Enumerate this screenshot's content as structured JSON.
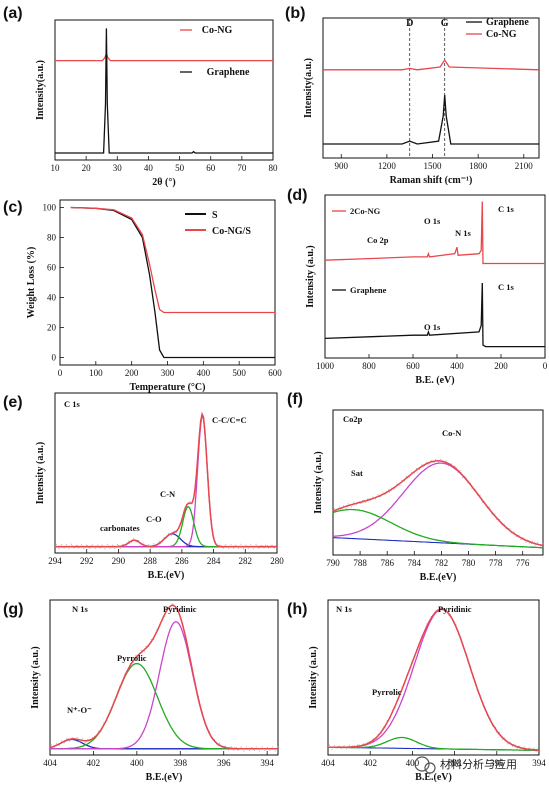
{
  "watermark": "材料分析与应用",
  "chart_data": [
    {
      "id": "a",
      "panel_label": "(a)",
      "type": "line",
      "xlabel": "2θ (°)",
      "ylabel": "Intensity(a.u.)",
      "xlim": [
        10,
        80
      ],
      "ylim": [
        0,
        1
      ],
      "xticks": [
        10,
        20,
        30,
        40,
        50,
        60,
        70,
        80
      ],
      "series": [
        {
          "name": "Co-NG",
          "color": "#e8474c",
          "x": [
            10,
            25.2,
            26,
            26.5,
            27,
            27.8,
            80
          ],
          "y": [
            0.71,
            0.71,
            0.73,
            0.76,
            0.73,
            0.71,
            0.71
          ]
        },
        {
          "name": "Graphene",
          "color": "#111111",
          "x": [
            10,
            25.6,
            26.2,
            26.5,
            26.8,
            27.4,
            54,
            54.5,
            55,
            80
          ],
          "y": [
            0.05,
            0.05,
            0.4,
            0.94,
            0.4,
            0.05,
            0.05,
            0.06,
            0.05,
            0.05
          ]
        }
      ]
    },
    {
      "id": "b",
      "panel_label": "(b)",
      "type": "line",
      "xlabel": "Raman shift (cm⁻¹)",
      "ylabel": "Intensity(a.u.)",
      "xlim": [
        780,
        2200
      ],
      "ylim": [
        0,
        1
      ],
      "xticks": [
        900,
        1200,
        1500,
        1800,
        2100
      ],
      "vlines": [
        1350,
        1580
      ],
      "vline_labels": [
        "D",
        "G"
      ],
      "series": [
        {
          "name": "Graphene",
          "color": "#111111",
          "x": [
            780,
            1300,
            1350,
            1400,
            1540,
            1570,
            1580,
            1590,
            1620,
            2200
          ],
          "y": [
            0.1,
            0.1,
            0.12,
            0.1,
            0.12,
            0.3,
            0.45,
            0.3,
            0.1,
            0.1
          ]
        },
        {
          "name": "Co-NG",
          "color": "#e8474c",
          "x": [
            780,
            1300,
            1350,
            1400,
            1550,
            1580,
            1610,
            2200
          ],
          "y": [
            0.63,
            0.63,
            0.64,
            0.63,
            0.65,
            0.7,
            0.65,
            0.63
          ]
        }
      ]
    },
    {
      "id": "c",
      "panel_label": "(c)",
      "type": "line",
      "xlabel": "Temperature (°C)",
      "ylabel": "Weight Loss (%)",
      "xlim": [
        0,
        600
      ],
      "ylim": [
        -5,
        105
      ],
      "xticks": [
        0,
        100,
        200,
        300,
        400,
        500,
        600
      ],
      "yticks": [
        0,
        20,
        40,
        60,
        80,
        100
      ],
      "series": [
        {
          "name": "S",
          "color": "#111111",
          "x": [
            30,
            100,
            150,
            200,
            230,
            250,
            265,
            278,
            290,
            600
          ],
          "y": [
            100,
            99.5,
            98,
            92,
            80,
            55,
            30,
            5,
            0,
            0
          ]
        },
        {
          "name": "Co-NG/S",
          "color": "#e8474c",
          "x": [
            30,
            100,
            150,
            200,
            230,
            250,
            265,
            278,
            290,
            600
          ],
          "y": [
            100,
            99.5,
            98.5,
            93,
            82,
            62,
            45,
            32,
            30,
            30
          ]
        }
      ]
    },
    {
      "id": "d",
      "panel_label": "(d)",
      "type": "line",
      "xlabel": "B.E. (eV)",
      "ylabel": "Intensity (a.u.)",
      "xlim": [
        1000,
        0
      ],
      "ylim": [
        0,
        1
      ],
      "xticks": [
        1000,
        800,
        600,
        400,
        200,
        0
      ],
      "series": [
        {
          "name": "2Co-NG",
          "color": "#e8474c",
          "x": [
            1000,
            800,
            600,
            535,
            530,
            525,
            410,
            400,
            395,
            300,
            290,
            285,
            282,
            270,
            0
          ],
          "y": [
            0.6,
            0.61,
            0.62,
            0.62,
            0.64,
            0.62,
            0.64,
            0.68,
            0.63,
            0.64,
            0.66,
            0.96,
            0.58,
            0.58,
            0.58
          ]
        },
        {
          "name": "Graphene",
          "color": "#111111",
          "x": [
            1000,
            800,
            600,
            535,
            530,
            525,
            300,
            290,
            285,
            282,
            270,
            0
          ],
          "y": [
            0.12,
            0.13,
            0.14,
            0.14,
            0.16,
            0.14,
            0.16,
            0.2,
            0.46,
            0.08,
            0.07,
            0.07
          ]
        }
      ],
      "annotations": [
        "Co 2p",
        "O 1s",
        "N 1s",
        "C 1s",
        "O 1s",
        "C 1s"
      ]
    },
    {
      "id": "e",
      "panel_label": "(e)",
      "type": "line",
      "xlabel": "B.E.(eV)",
      "ylabel": "Intensity (a.u.)",
      "xlim": [
        294,
        280
      ],
      "ylim": [
        0,
        1
      ],
      "xticks": [
        294,
        292,
        290,
        288,
        286,
        284,
        282,
        280
      ],
      "title": "C 1s",
      "peak_labels": [
        "carbonates",
        "C-O",
        "C-N",
        "C-C/C=C"
      ],
      "peaks": [
        {
          "name": "carbonates",
          "color": "#2030c0",
          "center": 289.0,
          "width": 0.35,
          "height": 0.04
        },
        {
          "name": "C-O",
          "color": "#2030c0",
          "center": 286.6,
          "width": 0.5,
          "height": 0.08
        },
        {
          "name": "C-N",
          "color": "#22aa22",
          "center": 285.6,
          "width": 0.35,
          "height": 0.25
        },
        {
          "name": "C-C/C=C",
          "color": "#cc44cc",
          "center": 284.7,
          "width": 0.3,
          "height": 0.82
        }
      ],
      "envelope_color": "#e8474c",
      "base": 0.04
    },
    {
      "id": "f",
      "panel_label": "(f)",
      "type": "line",
      "xlabel": "B.E.(eV)",
      "ylabel": "Intensity (a.u.)",
      "xlim": [
        790,
        774.5
      ],
      "ylim": [
        0,
        1
      ],
      "xticks": [
        790,
        788,
        786,
        784,
        782,
        780,
        778,
        776
      ],
      "title": "Co2p",
      "peak_labels": [
        "Co-N",
        "Sat"
      ],
      "peaks": [
        {
          "name": "Co-N",
          "color": "#cc44cc",
          "center": 782.0,
          "width": 2.8,
          "height": 0.55
        },
        {
          "name": "Sat",
          "color": "#22aa22",
          "center": 788.5,
          "width": 2.8,
          "height": 0.2
        }
      ],
      "envelope_color": "#e8474c",
      "base": 0.12,
      "base_end": 0.05
    },
    {
      "id": "g",
      "panel_label": "(g)",
      "type": "line",
      "xlabel": "B.E.(eV)",
      "ylabel": "Intensity (a.u.)",
      "xlim": [
        404,
        393.5
      ],
      "ylim": [
        0,
        1
      ],
      "xticks": [
        404,
        402,
        400,
        398,
        396,
        394
      ],
      "title": "N 1s",
      "peak_labels": [
        "N⁺-O⁻",
        "Pyrrolic",
        "Pyridinic"
      ],
      "peaks": [
        {
          "name": "N⁺-O⁻",
          "color": "#2030c0",
          "center": 403.0,
          "width": 0.5,
          "height": 0.06
        },
        {
          "name": "Pyrrolic",
          "color": "#22aa22",
          "center": 400.0,
          "width": 0.95,
          "height": 0.55
        },
        {
          "name": "Pyridinic",
          "color": "#cc44cc",
          "center": 398.2,
          "width": 0.75,
          "height": 0.82
        }
      ],
      "envelope_color": "#e8474c",
      "base": 0.04
    },
    {
      "id": "h",
      "panel_label": "(h)",
      "type": "line",
      "xlabel": "B.E.(eV)",
      "ylabel": "Intensity (a.u.)",
      "xlim": [
        404,
        394
      ],
      "ylim": [
        0,
        1
      ],
      "xticks": [
        404,
        402,
        400,
        398,
        396,
        394
      ],
      "title": "N 1s",
      "peak_labels": [
        "Pyrrolic",
        "Pyridinic"
      ],
      "peaks": [
        {
          "name": "Pyrrolic",
          "color": "#22aa22",
          "center": 400.5,
          "width": 0.7,
          "height": 0.07
        },
        {
          "name": "Pyridinic",
          "color": "#cc44cc",
          "center": 398.6,
          "width": 1.3,
          "height": 0.9
        }
      ],
      "envelope_color": "#e8474c",
      "base": 0.05,
      "base_end": 0.03
    }
  ]
}
